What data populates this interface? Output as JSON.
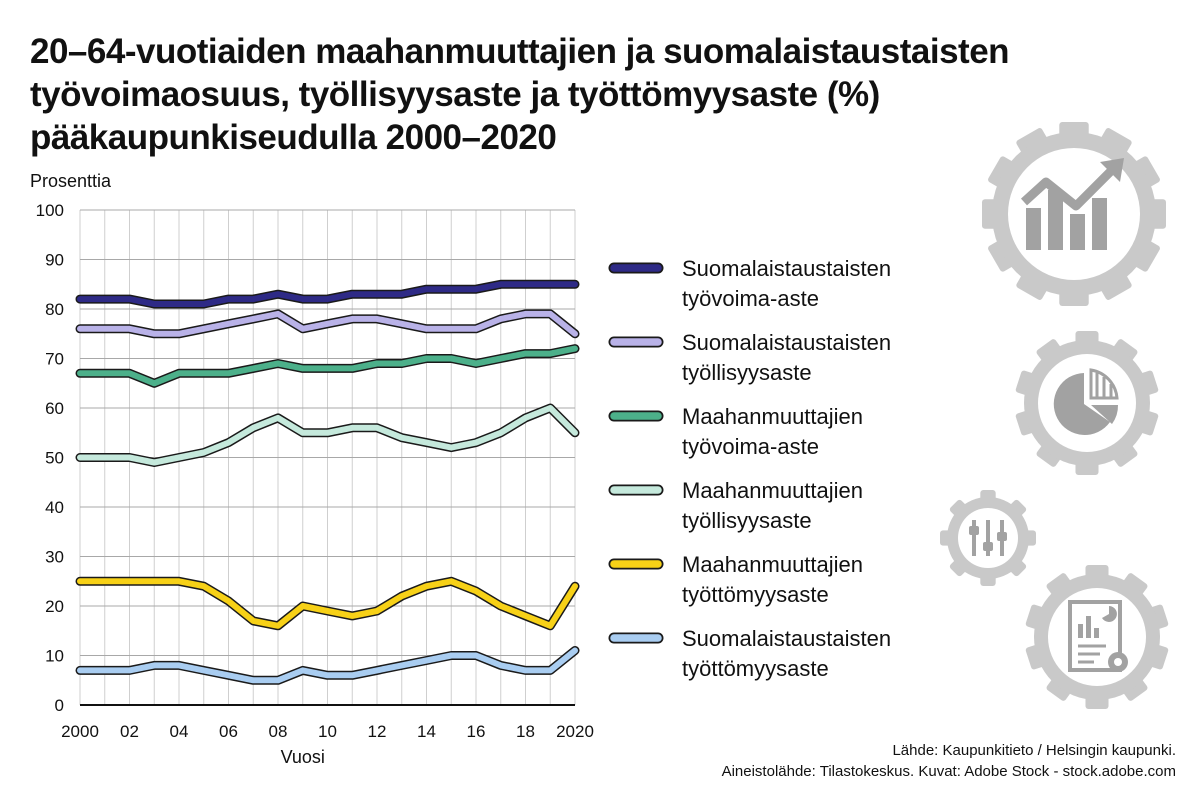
{
  "title_lines": [
    "20–64-vuotiaiden maahanmuuttajien ja suomalaistaustaisten",
    "työvoimaosuus, työllisyysaste ja työttömyysaste (%)",
    "pääkaupunkiseudulla 2000–2020"
  ],
  "source_lines": [
    "Lähde: Kaupunkitieto / Helsingin kaupunki.",
    "Aineistolähde: Tilastokeskus. Kuvat: Adobe Stock - stock.adobe.com"
  ],
  "icons": [
    "bar-chart-growth-icon",
    "pie-chart-icon",
    "sliders-icon",
    "report-document-icon"
  ],
  "chart_data": {
    "type": "line",
    "ylabel": "Prosenttia",
    "xlabel": "Vuosi",
    "ylim": [
      0,
      100
    ],
    "xlim": [
      2000,
      2020
    ],
    "grid": true,
    "legend_position": "right",
    "y_ticks": [
      "0",
      "10",
      "20",
      "30",
      "40",
      "50",
      "60",
      "70",
      "80",
      "90",
      "100"
    ],
    "x_tick_values": [
      2000,
      2002,
      2004,
      2006,
      2008,
      2010,
      2012,
      2014,
      2016,
      2018,
      2020
    ],
    "x_tick_labels": [
      "2000",
      "02",
      "04",
      "06",
      "08",
      "10",
      "12",
      "14",
      "16",
      "18",
      "2020"
    ],
    "x": [
      2000,
      2001,
      2002,
      2003,
      2004,
      2005,
      2006,
      2007,
      2008,
      2009,
      2010,
      2011,
      2012,
      2013,
      2014,
      2015,
      2016,
      2017,
      2018,
      2019,
      2020
    ],
    "series": [
      {
        "name_lines": [
          "Suomalaistaustaisten",
          "työvoima-aste"
        ],
        "color": "#2e2a86",
        "values": [
          82,
          82,
          82,
          81,
          81,
          81,
          82,
          82,
          83,
          82,
          82,
          83,
          83,
          83,
          84,
          84,
          84,
          85,
          85,
          85,
          85
        ]
      },
      {
        "name_lines": [
          "Suomalaistaustaisten",
          "työllisyysaste"
        ],
        "color": "#b9b2e8",
        "values": [
          76,
          76,
          76,
          75,
          75,
          76,
          77,
          78,
          79,
          76,
          77,
          78,
          78,
          77,
          76,
          76,
          76,
          78,
          79,
          79,
          75
        ]
      },
      {
        "name_lines": [
          "Maahanmuuttajien",
          "työvoima-aste"
        ],
        "color": "#4cb08a",
        "values": [
          67,
          67,
          67,
          65,
          67,
          67,
          67,
          68,
          69,
          68,
          68,
          68,
          69,
          69,
          70,
          70,
          69,
          70,
          71,
          71,
          72
        ]
      },
      {
        "name_lines": [
          "Maahanmuuttajien",
          "työllisyysaste"
        ],
        "color": "#c5e9dc",
        "values": [
          50,
          50,
          50,
          49,
          50,
          51,
          53,
          56,
          58,
          55,
          55,
          56,
          56,
          54,
          53,
          52,
          53,
          55,
          58,
          60,
          55
        ]
      },
      {
        "name_lines": [
          "Maahanmuuttajien",
          "työttömyysaste"
        ],
        "color": "#f7d117",
        "values": [
          25,
          25,
          25,
          25,
          25,
          24,
          21,
          17,
          16,
          20,
          19,
          18,
          19,
          22,
          24,
          25,
          23,
          20,
          18,
          16,
          24
        ]
      },
      {
        "name_lines": [
          "Suomalaistaustaisten",
          "työttömyysaste"
        ],
        "color": "#a9cdf1",
        "values": [
          7,
          7,
          7,
          8,
          8,
          7,
          6,
          5,
          5,
          7,
          6,
          6,
          7,
          8,
          9,
          10,
          10,
          8,
          7,
          7,
          11
        ]
      }
    ]
  }
}
